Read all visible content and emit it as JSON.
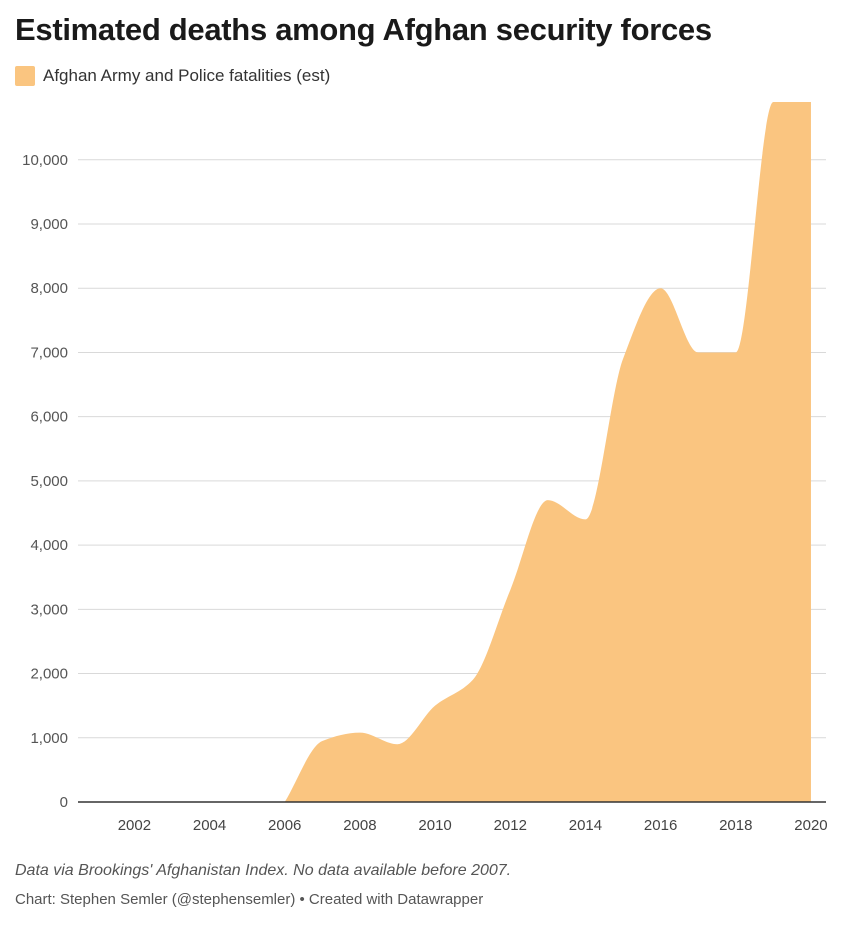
{
  "chart_data": {
    "type": "area",
    "title": "Estimated deaths among Afghan security forces",
    "series": [
      {
        "name": "Afghan Army and Police fatalities (est)",
        "color": "#fac580",
        "x": [
          2006,
          2007,
          2008,
          2009,
          2010,
          2011,
          2012,
          2013,
          2014,
          2015,
          2016,
          2017,
          2018,
          2019,
          2020
        ],
        "values": [
          0,
          950,
          1080,
          900,
          1500,
          1900,
          3300,
          4700,
          4400,
          6900,
          8000,
          7000,
          7000,
          10900,
          10900
        ]
      }
    ],
    "x_ticks": [
      "2002",
      "2004",
      "2006",
      "2008",
      "2010",
      "2012",
      "2014",
      "2016",
      "2018",
      "2020"
    ],
    "y_ticks": [
      "0",
      "1,000",
      "2,000",
      "3,000",
      "4,000",
      "5,000",
      "6,000",
      "7,000",
      "8,000",
      "9,000",
      "10,000"
    ],
    "xlim": [
      2000.5,
      2020.4
    ],
    "ylim": [
      0,
      10900
    ],
    "grid": true,
    "legend_position": "top-left"
  },
  "footer": {
    "note": "Data via Brookings' Afghanistan Index. No data available before 2007.",
    "credit": "Chart: Stephen Semler (@stephensemler) • Created with Datawrapper"
  }
}
